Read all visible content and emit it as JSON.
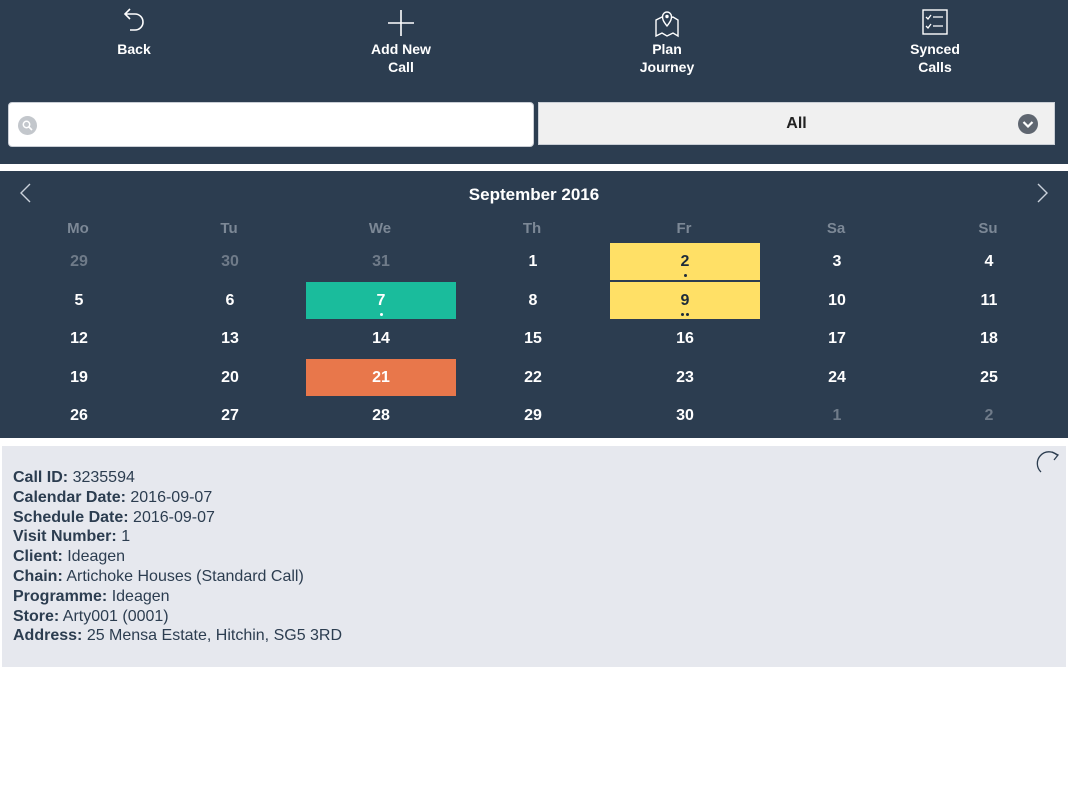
{
  "toolbar": {
    "back_label": "Back",
    "add_label": "Add New\nCall",
    "plan_label": "Plan\nJourney",
    "synced_label": "Synced\nCalls"
  },
  "search": {
    "value": "",
    "placeholder": ""
  },
  "filter": {
    "selected": "All"
  },
  "calendar": {
    "title": "September 2016",
    "weekdays": [
      "Mo",
      "Tu",
      "We",
      "Th",
      "Fr",
      "Sa",
      "Su"
    ],
    "weeks": [
      [
        {
          "n": "29",
          "muted": true
        },
        {
          "n": "30",
          "muted": true
        },
        {
          "n": "31",
          "muted": true
        },
        {
          "n": "1"
        },
        {
          "n": "2",
          "status": "yellow",
          "dots": 1
        },
        {
          "n": "3"
        },
        {
          "n": "4"
        }
      ],
      [
        {
          "n": "5"
        },
        {
          "n": "6"
        },
        {
          "n": "7",
          "status": "green",
          "dots": 1
        },
        {
          "n": "8"
        },
        {
          "n": "9",
          "status": "yellow",
          "dots": 2
        },
        {
          "n": "10"
        },
        {
          "n": "11"
        }
      ],
      [
        {
          "n": "12"
        },
        {
          "n": "13"
        },
        {
          "n": "14"
        },
        {
          "n": "15"
        },
        {
          "n": "16"
        },
        {
          "n": "17"
        },
        {
          "n": "18"
        }
      ],
      [
        {
          "n": "19"
        },
        {
          "n": "20"
        },
        {
          "n": "21",
          "status": "orange"
        },
        {
          "n": "22"
        },
        {
          "n": "23"
        },
        {
          "n": "24"
        },
        {
          "n": "25"
        }
      ],
      [
        {
          "n": "26"
        },
        {
          "n": "27"
        },
        {
          "n": "28"
        },
        {
          "n": "29"
        },
        {
          "n": "30"
        },
        {
          "n": "1",
          "muted": true
        },
        {
          "n": "2",
          "muted": true
        }
      ]
    ]
  },
  "details": [
    {
      "key": "Call ID:",
      "value": "3235594"
    },
    {
      "key": "Calendar Date:",
      "value": "2016-09-07"
    },
    {
      "key": "Schedule Date:",
      "value": "2016-09-07"
    },
    {
      "key": "Visit Number:",
      "value": "1"
    },
    {
      "key": "Client:",
      "value": "Ideagen"
    },
    {
      "key": "Chain:",
      "value": "Artichoke Houses (Standard Call)"
    },
    {
      "key": "Programme:",
      "value": "Ideagen"
    },
    {
      "key": "Store:",
      "value": "Arty001 (0001)"
    },
    {
      "key": "Address:",
      "value": "25 Mensa Estate, Hitchin, SG5 3RD"
    }
  ],
  "colors": {
    "panel": "#2c3d50",
    "green": "#1abc9c",
    "yellow": "#ffe066",
    "orange": "#e8774b",
    "details_bg": "#e6e8ee"
  },
  "icons": {
    "back": "undo-arrow-icon",
    "add": "plus-icon",
    "plan": "map-pin-icon",
    "synced": "checklist-icon",
    "search": "search-icon",
    "dropdown": "chevron-down-icon",
    "prev": "chevron-left-icon",
    "next": "chevron-right-icon",
    "refresh": "refresh-icon"
  }
}
